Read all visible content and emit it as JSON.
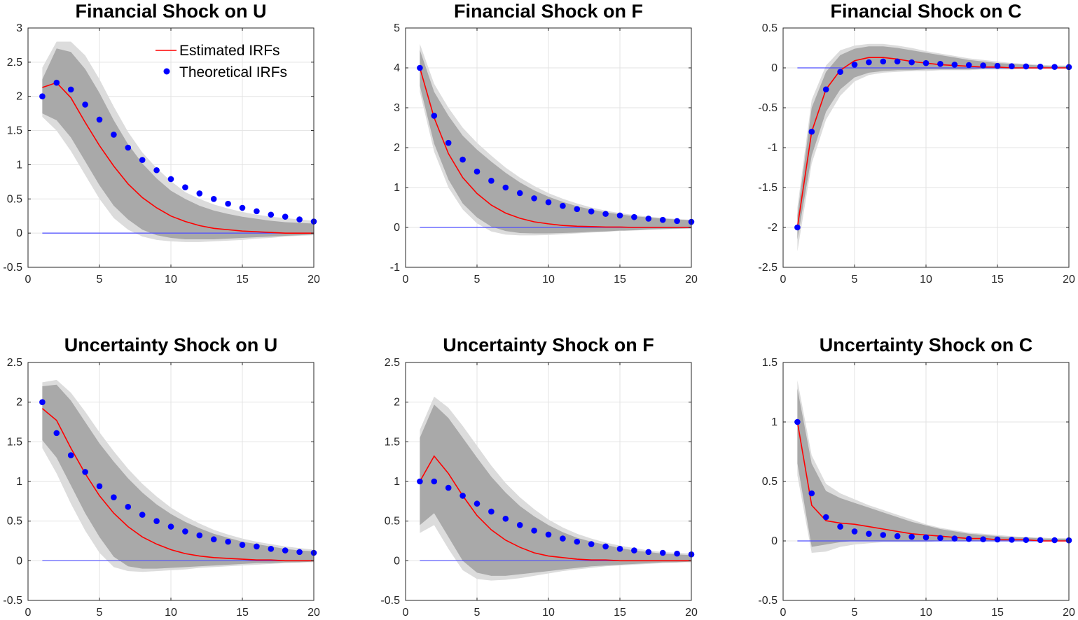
{
  "colors": {
    "estimated": "#ff0000",
    "theoretical": "#0000ff",
    "zero_line": "#4d4dff",
    "band_inner": "#a9a9a9",
    "band_outer": "#dcdcdc",
    "grid": "#e3e3e3",
    "axis": "#262626"
  },
  "legend": {
    "estimated_label": "Estimated IRFs",
    "theoretical_label": "Theoretical IRFs",
    "placement": "top-right of first panel"
  },
  "chart_data": [
    {
      "type": "line",
      "title": "Financial Shock on U",
      "xlabel": "",
      "ylabel": "",
      "xlim": [
        0,
        20
      ],
      "ylim": [
        -0.5,
        3
      ],
      "xticks": [
        "0",
        "5",
        "10",
        "15",
        "20"
      ],
      "yticks": [
        "3",
        "2.5",
        "2",
        "1.5",
        "1",
        "0.5",
        "0",
        "-0.5"
      ],
      "yticks_values": [
        3,
        2.5,
        2,
        1.5,
        1,
        0.5,
        0,
        -0.5
      ],
      "grid": true,
      "has_legend": true,
      "x": [
        1,
        2,
        3,
        4,
        5,
        6,
        7,
        8,
        9,
        10,
        11,
        12,
        13,
        14,
        15,
        16,
        17,
        18,
        19,
        20
      ],
      "series": [
        {
          "name": "Estimated IRFs",
          "values": [
            2.13,
            2.2,
            1.98,
            1.62,
            1.28,
            0.98,
            0.72,
            0.52,
            0.37,
            0.25,
            0.17,
            0.11,
            0.07,
            0.05,
            0.03,
            0.02,
            0.01,
            0.0,
            0.0,
            0.0
          ]
        },
        {
          "name": "Theoretical IRFs",
          "values": [
            2.0,
            2.2,
            2.1,
            1.88,
            1.66,
            1.44,
            1.25,
            1.07,
            0.92,
            0.79,
            0.67,
            0.58,
            0.5,
            0.43,
            0.37,
            0.32,
            0.27,
            0.24,
            0.2,
            0.17
          ]
        }
      ],
      "band_inner_upper": [
        2.25,
        2.7,
        2.65,
        2.4,
        2.05,
        1.65,
        1.3,
        1.02,
        0.8,
        0.62,
        0.5,
        0.4,
        0.33,
        0.28,
        0.24,
        0.21,
        0.18,
        0.16,
        0.15,
        0.14
      ],
      "band_inner_lower": [
        1.75,
        1.65,
        1.4,
        1.05,
        0.7,
        0.4,
        0.2,
        0.05,
        -0.03,
        -0.07,
        -0.09,
        -0.09,
        -0.09,
        -0.08,
        -0.07,
        -0.06,
        -0.05,
        -0.04,
        -0.03,
        -0.02
      ],
      "band_outer_upper": [
        2.42,
        2.8,
        2.8,
        2.6,
        2.25,
        1.85,
        1.48,
        1.18,
        0.95,
        0.76,
        0.6,
        0.5,
        0.42,
        0.36,
        0.31,
        0.27,
        0.24,
        0.22,
        0.2,
        0.18
      ],
      "band_outer_lower": [
        1.7,
        1.5,
        1.2,
        0.85,
        0.5,
        0.22,
        0.05,
        -0.05,
        -0.1,
        -0.12,
        -0.13,
        -0.13,
        -0.12,
        -0.11,
        -0.1,
        -0.08,
        -0.07,
        -0.05,
        -0.04,
        -0.03
      ]
    },
    {
      "type": "line",
      "title": "Financial Shock on F",
      "xlabel": "",
      "ylabel": "",
      "xlim": [
        0,
        20
      ],
      "ylim": [
        -1,
        5
      ],
      "xticks": [
        "0",
        "5",
        "10",
        "15",
        "20"
      ],
      "yticks": [
        "5",
        "4",
        "3",
        "2",
        "1",
        "0",
        "-1"
      ],
      "yticks_values": [
        5,
        4,
        3,
        2,
        1,
        0,
        -1
      ],
      "grid": true,
      "has_legend": false,
      "x": [
        1,
        2,
        3,
        4,
        5,
        6,
        7,
        8,
        9,
        10,
        11,
        12,
        13,
        14,
        15,
        16,
        17,
        18,
        19,
        20
      ],
      "series": [
        {
          "name": "Estimated IRFs",
          "values": [
            4.0,
            2.75,
            1.85,
            1.25,
            0.85,
            0.56,
            0.36,
            0.23,
            0.14,
            0.09,
            0.05,
            0.03,
            0.02,
            0.01,
            0.01,
            0.0,
            0.0,
            0.0,
            0.0,
            0.0
          ]
        },
        {
          "name": "Theoretical IRFs",
          "values": [
            4.0,
            2.8,
            2.12,
            1.7,
            1.4,
            1.17,
            1.0,
            0.86,
            0.73,
            0.63,
            0.54,
            0.46,
            0.4,
            0.34,
            0.3,
            0.26,
            0.22,
            0.19,
            0.16,
            0.14
          ]
        }
      ],
      "band_inner_upper": [
        4.45,
        3.4,
        2.8,
        2.3,
        1.95,
        1.65,
        1.37,
        1.13,
        0.93,
        0.77,
        0.64,
        0.53,
        0.45,
        0.38,
        0.33,
        0.28,
        0.25,
        0.22,
        0.2,
        0.18
      ],
      "band_inner_lower": [
        3.55,
        2.1,
        1.2,
        0.6,
        0.25,
        0.02,
        -0.09,
        -0.14,
        -0.15,
        -0.15,
        -0.14,
        -0.13,
        -0.11,
        -0.1,
        -0.08,
        -0.07,
        -0.05,
        -0.04,
        -0.03,
        -0.02
      ],
      "band_outer_upper": [
        4.6,
        3.6,
        3.0,
        2.5,
        2.12,
        1.8,
        1.5,
        1.25,
        1.04,
        0.86,
        0.72,
        0.6,
        0.5,
        0.42,
        0.36,
        0.31,
        0.27,
        0.24,
        0.21,
        0.19
      ],
      "band_outer_lower": [
        3.4,
        1.9,
        1.0,
        0.45,
        0.1,
        -0.1,
        -0.18,
        -0.2,
        -0.2,
        -0.19,
        -0.17,
        -0.15,
        -0.13,
        -0.11,
        -0.09,
        -0.08,
        -0.06,
        -0.05,
        -0.04,
        -0.03
      ]
    },
    {
      "type": "line",
      "title": "Financial Shock on C",
      "xlabel": "",
      "ylabel": "",
      "xlim": [
        0,
        20
      ],
      "ylim": [
        -2.5,
        0.5
      ],
      "xticks": [
        "0",
        "5",
        "10",
        "15",
        "20"
      ],
      "yticks": [
        "0.5",
        "0",
        "-0.5",
        "-1",
        "-1.5",
        "-2",
        "-2.5"
      ],
      "yticks_values": [
        0.5,
        0,
        -0.5,
        -1,
        -1.5,
        -2,
        -2.5
      ],
      "grid": true,
      "has_legend": false,
      "x": [
        1,
        2,
        3,
        4,
        5,
        6,
        7,
        8,
        9,
        10,
        11,
        12,
        13,
        14,
        15,
        16,
        17,
        18,
        19,
        20
      ],
      "series": [
        {
          "name": "Estimated IRFs",
          "values": [
            -2.0,
            -0.8,
            -0.27,
            -0.03,
            0.09,
            0.13,
            0.13,
            0.11,
            0.08,
            0.06,
            0.04,
            0.03,
            0.02,
            0.01,
            0.01,
            0.0,
            0.0,
            0.0,
            0.0,
            0.0
          ]
        },
        {
          "name": "Theoretical IRFs",
          "values": [
            -2.0,
            -0.8,
            -0.27,
            -0.05,
            0.04,
            0.07,
            0.08,
            0.08,
            0.07,
            0.06,
            0.05,
            0.04,
            0.035,
            0.03,
            0.025,
            0.02,
            0.018,
            0.015,
            0.012,
            0.01
          ]
        }
      ],
      "band_inner_upper": [
        -1.85,
        -0.5,
        -0.05,
        0.16,
        0.24,
        0.27,
        0.27,
        0.25,
        0.22,
        0.19,
        0.16,
        0.13,
        0.1,
        0.08,
        0.06,
        0.05,
        0.04,
        0.03,
        0.02,
        0.02
      ],
      "band_inner_lower": [
        -2.15,
        -1.1,
        -0.55,
        -0.27,
        -0.12,
        -0.06,
        -0.04,
        -0.03,
        -0.03,
        -0.02,
        -0.02,
        -0.02,
        -0.02,
        -0.01,
        -0.01,
        -0.01,
        -0.01,
        -0.01,
        0.0,
        0.0
      ],
      "band_outer_upper": [
        -1.75,
        -0.4,
        0.03,
        0.22,
        0.28,
        0.3,
        0.3,
        0.28,
        0.25,
        0.21,
        0.18,
        0.15,
        0.12,
        0.1,
        0.08,
        0.06,
        0.05,
        0.04,
        0.03,
        0.03
      ],
      "band_outer_lower": [
        -2.3,
        -1.2,
        -0.65,
        -0.35,
        -0.17,
        -0.09,
        -0.06,
        -0.05,
        -0.04,
        -0.04,
        -0.03,
        -0.03,
        -0.03,
        -0.02,
        -0.02,
        -0.02,
        -0.01,
        -0.01,
        -0.01,
        -0.01
      ]
    },
    {
      "type": "line",
      "title": "Uncertainty Shock on U",
      "xlabel": "",
      "ylabel": "",
      "xlim": [
        0,
        20
      ],
      "ylim": [
        -0.5,
        2.5
      ],
      "xticks": [
        "0",
        "5",
        "10",
        "15",
        "20"
      ],
      "yticks": [
        "2.5",
        "2",
        "1.5",
        "1",
        "0.5",
        "0",
        "-0.5"
      ],
      "yticks_values": [
        2.5,
        2,
        1.5,
        1,
        0.5,
        0,
        -0.5
      ],
      "grid": true,
      "has_legend": false,
      "x": [
        1,
        2,
        3,
        4,
        5,
        6,
        7,
        8,
        9,
        10,
        11,
        12,
        13,
        14,
        15,
        16,
        17,
        18,
        19,
        20
      ],
      "series": [
        {
          "name": "Estimated IRFs",
          "values": [
            1.92,
            1.77,
            1.42,
            1.1,
            0.82,
            0.6,
            0.43,
            0.3,
            0.21,
            0.14,
            0.09,
            0.06,
            0.04,
            0.03,
            0.02,
            0.01,
            0.01,
            0.0,
            0.0,
            0.0
          ]
        },
        {
          "name": "Theoretical IRFs",
          "values": [
            2.0,
            1.61,
            1.33,
            1.12,
            0.94,
            0.8,
            0.68,
            0.58,
            0.5,
            0.43,
            0.37,
            0.32,
            0.27,
            0.24,
            0.2,
            0.18,
            0.15,
            0.13,
            0.11,
            0.1
          ]
        }
      ],
      "band_inner_upper": [
        2.2,
        2.22,
        2.02,
        1.75,
        1.48,
        1.25,
        1.04,
        0.86,
        0.71,
        0.59,
        0.49,
        0.41,
        0.34,
        0.29,
        0.24,
        0.21,
        0.18,
        0.15,
        0.13,
        0.12
      ],
      "band_inner_lower": [
        1.52,
        1.3,
        0.95,
        0.6,
        0.3,
        0.05,
        -0.07,
        -0.1,
        -0.1,
        -0.09,
        -0.08,
        -0.07,
        -0.06,
        -0.05,
        -0.04,
        -0.03,
        -0.03,
        -0.02,
        -0.02,
        -0.01
      ],
      "band_outer_upper": [
        2.25,
        2.28,
        2.12,
        1.88,
        1.62,
        1.38,
        1.16,
        0.97,
        0.81,
        0.67,
        0.56,
        0.47,
        0.39,
        0.33,
        0.28,
        0.24,
        0.21,
        0.18,
        0.16,
        0.14
      ],
      "band_outer_lower": [
        1.42,
        1.1,
        0.72,
        0.38,
        0.1,
        -0.08,
        -0.13,
        -0.14,
        -0.13,
        -0.12,
        -0.11,
        -0.09,
        -0.08,
        -0.07,
        -0.06,
        -0.05,
        -0.04,
        -0.03,
        -0.02,
        -0.02
      ]
    },
    {
      "type": "line",
      "title": "Uncertainty Shock on F",
      "xlabel": "",
      "ylabel": "",
      "xlim": [
        0,
        20
      ],
      "ylim": [
        -0.5,
        2.5
      ],
      "xticks": [
        "0",
        "5",
        "10",
        "15",
        "20"
      ],
      "yticks": [
        "2.5",
        "2",
        "1.5",
        "1",
        "0.5",
        "0",
        "-0.5"
      ],
      "yticks_values": [
        2.5,
        2,
        1.5,
        1,
        0.5,
        0,
        -0.5
      ],
      "grid": true,
      "has_legend": false,
      "x": [
        1,
        2,
        3,
        4,
        5,
        6,
        7,
        8,
        9,
        10,
        11,
        12,
        13,
        14,
        15,
        16,
        17,
        18,
        19,
        20
      ],
      "series": [
        {
          "name": "Estimated IRFs",
          "values": [
            1.0,
            1.32,
            1.1,
            0.82,
            0.57,
            0.39,
            0.26,
            0.17,
            0.1,
            0.06,
            0.04,
            0.02,
            0.01,
            0.01,
            0.0,
            0.0,
            0.0,
            0.0,
            0.0,
            0.0
          ]
        },
        {
          "name": "Theoretical IRFs",
          "values": [
            1.0,
            1.0,
            0.92,
            0.82,
            0.72,
            0.62,
            0.53,
            0.45,
            0.38,
            0.33,
            0.28,
            0.24,
            0.21,
            0.18,
            0.15,
            0.13,
            0.11,
            0.1,
            0.09,
            0.08
          ]
        }
      ],
      "band_inner_upper": [
        1.55,
        1.97,
        1.8,
        1.55,
        1.3,
        1.06,
        0.86,
        0.69,
        0.56,
        0.45,
        0.36,
        0.29,
        0.24,
        0.2,
        0.16,
        0.13,
        0.11,
        0.09,
        0.08,
        0.07
      ],
      "band_inner_lower": [
        0.45,
        0.6,
        0.3,
        0.0,
        -0.15,
        -0.19,
        -0.19,
        -0.17,
        -0.15,
        -0.13,
        -0.11,
        -0.09,
        -0.07,
        -0.06,
        -0.05,
        -0.04,
        -0.03,
        -0.02,
        -0.02,
        -0.01
      ],
      "band_outer_upper": [
        1.65,
        2.07,
        1.93,
        1.7,
        1.45,
        1.2,
        0.98,
        0.8,
        0.65,
        0.52,
        0.42,
        0.34,
        0.28,
        0.23,
        0.19,
        0.16,
        0.13,
        0.11,
        0.1,
        0.09
      ],
      "band_outer_lower": [
        0.35,
        0.45,
        0.15,
        -0.12,
        -0.23,
        -0.25,
        -0.24,
        -0.22,
        -0.19,
        -0.16,
        -0.13,
        -0.11,
        -0.09,
        -0.07,
        -0.06,
        -0.05,
        -0.04,
        -0.03,
        -0.02,
        -0.02
      ]
    },
    {
      "type": "line",
      "title": "Uncertainty Shock on C",
      "xlabel": "",
      "ylabel": "",
      "xlim": [
        0,
        20
      ],
      "ylim": [
        -0.5,
        1.5
      ],
      "xticks": [
        "0",
        "5",
        "10",
        "15",
        "20"
      ],
      "yticks": [
        "1.5",
        "1",
        "0.5",
        "0",
        "-0.5"
      ],
      "yticks_values": [
        1.5,
        1,
        0.5,
        0,
        -0.5
      ],
      "grid": true,
      "has_legend": false,
      "x": [
        1,
        2,
        3,
        4,
        5,
        6,
        7,
        8,
        9,
        10,
        11,
        12,
        13,
        14,
        15,
        16,
        17,
        18,
        19,
        20
      ],
      "series": [
        {
          "name": "Estimated IRFs",
          "values": [
            1.0,
            0.3,
            0.17,
            0.15,
            0.14,
            0.12,
            0.1,
            0.08,
            0.06,
            0.05,
            0.04,
            0.03,
            0.02,
            0.02,
            0.01,
            0.01,
            0.01,
            0.0,
            0.0,
            0.0
          ]
        },
        {
          "name": "Theoretical IRFs",
          "values": [
            1.0,
            0.4,
            0.2,
            0.12,
            0.08,
            0.06,
            0.05,
            0.04,
            0.035,
            0.03,
            0.025,
            0.02,
            0.017,
            0.014,
            0.012,
            0.01,
            0.008,
            0.007,
            0.006,
            0.005
          ]
        }
      ],
      "band_inner_upper": [
        1.28,
        0.65,
        0.42,
        0.36,
        0.32,
        0.28,
        0.24,
        0.2,
        0.16,
        0.13,
        0.1,
        0.08,
        0.06,
        0.05,
        0.04,
        0.03,
        0.03,
        0.02,
        0.02,
        0.02
      ],
      "band_inner_lower": [
        0.65,
        -0.05,
        -0.03,
        -0.01,
        0.0,
        0.0,
        0.0,
        0.0,
        0.0,
        0.0,
        0.0,
        0.0,
        0.0,
        0.0,
        0.0,
        0.0,
        0.0,
        0.0,
        0.0,
        0.0
      ],
      "band_outer_upper": [
        1.35,
        0.72,
        0.48,
        0.4,
        0.35,
        0.3,
        0.26,
        0.22,
        0.18,
        0.14,
        0.11,
        0.09,
        0.07,
        0.06,
        0.05,
        0.04,
        0.03,
        0.03,
        0.02,
        0.02
      ],
      "band_outer_lower": [
        0.55,
        -0.1,
        -0.09,
        -0.05,
        -0.03,
        -0.02,
        -0.01,
        -0.01,
        -0.01,
        -0.01,
        0.0,
        0.0,
        0.0,
        0.0,
        0.0,
        0.0,
        0.0,
        0.0,
        0.0,
        0.0
      ]
    }
  ]
}
